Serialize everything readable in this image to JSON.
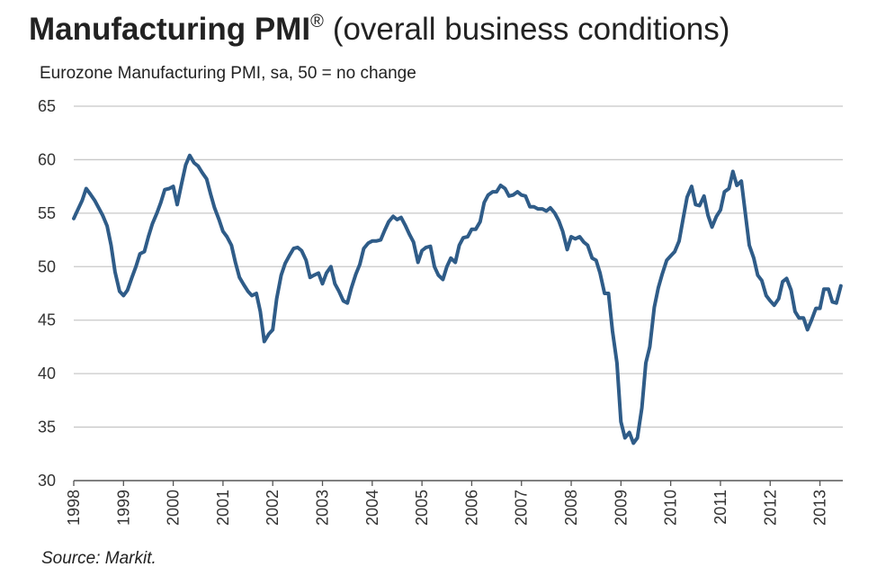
{
  "chart_data": {
    "type": "line",
    "title": "Manufacturing PMI",
    "title_mark": "®",
    "title_suffix": "(overall business conditions)",
    "subtitle": "Eurozone Manufacturing PMI, sa, 50 = no change",
    "source": "Source: Markit.",
    "color": "#2f5c88",
    "x": [
      1998.0,
      1998.08,
      1998.17,
      1998.25,
      1998.33,
      1998.42,
      1998.5,
      1998.58,
      1998.67,
      1998.75,
      1998.83,
      1998.92,
      1999.0,
      1999.08,
      1999.17,
      1999.25,
      1999.33,
      1999.42,
      1999.5,
      1999.58,
      1999.67,
      1999.75,
      1999.83,
      1999.92,
      2000.0,
      2000.08,
      2000.17,
      2000.25,
      2000.33,
      2000.42,
      2000.5,
      2000.58,
      2000.67,
      2000.75,
      2000.83,
      2000.92,
      2001.0,
      2001.08,
      2001.17,
      2001.25,
      2001.33,
      2001.42,
      2001.5,
      2001.58,
      2001.67,
      2001.75,
      2001.83,
      2001.92,
      2002.0,
      2002.08,
      2002.17,
      2002.25,
      2002.33,
      2002.42,
      2002.5,
      2002.58,
      2002.67,
      2002.75,
      2002.83,
      2002.92,
      2003.0,
      2003.08,
      2003.17,
      2003.25,
      2003.33,
      2003.42,
      2003.5,
      2003.58,
      2003.67,
      2003.75,
      2003.83,
      2003.92,
      2004.0,
      2004.08,
      2004.17,
      2004.25,
      2004.33,
      2004.42,
      2004.5,
      2004.58,
      2004.67,
      2004.75,
      2004.83,
      2004.92,
      2005.0,
      2005.08,
      2005.17,
      2005.25,
      2005.33,
      2005.42,
      2005.5,
      2005.58,
      2005.67,
      2005.75,
      2005.83,
      2005.92,
      2006.0,
      2006.08,
      2006.17,
      2006.25,
      2006.33,
      2006.42,
      2006.5,
      2006.58,
      2006.67,
      2006.75,
      2006.83,
      2006.92,
      2007.0,
      2007.08,
      2007.17,
      2007.25,
      2007.33,
      2007.42,
      2007.5,
      2007.58,
      2007.67,
      2007.75,
      2007.83,
      2007.92,
      2008.0,
      2008.08,
      2008.17,
      2008.25,
      2008.33,
      2008.42,
      2008.5,
      2008.58,
      2008.67,
      2008.75,
      2008.83,
      2008.92,
      2009.0,
      2009.08,
      2009.17,
      2009.25,
      2009.33,
      2009.42,
      2009.5,
      2009.58,
      2009.67,
      2009.75,
      2009.83,
      2009.92,
      2010.0,
      2010.08,
      2010.17,
      2010.25,
      2010.33,
      2010.42,
      2010.5,
      2010.58,
      2010.67,
      2010.75,
      2010.83,
      2010.92,
      2011.0,
      2011.08,
      2011.17,
      2011.25,
      2011.33,
      2011.42,
      2011.5,
      2011.58,
      2011.67,
      2011.75,
      2011.83,
      2011.92,
      2012.0,
      2012.08,
      2012.17,
      2012.25,
      2012.33,
      2012.42,
      2012.5,
      2012.58,
      2012.67,
      2012.75,
      2012.83,
      2012.92,
      2013.0,
      2013.08,
      2013.17,
      2013.25,
      2013.33,
      2013.42
    ],
    "values": [
      54.5,
      55.3,
      56.2,
      57.3,
      56.8,
      56.2,
      55.5,
      54.8,
      53.8,
      52.0,
      49.5,
      47.7,
      47.3,
      47.8,
      49.0,
      50.0,
      51.2,
      51.4,
      52.8,
      54.0,
      55.0,
      56.0,
      57.2,
      57.3,
      57.5,
      55.8,
      57.8,
      59.5,
      60.4,
      59.7,
      59.4,
      58.8,
      58.2,
      56.8,
      55.5,
      54.4,
      53.3,
      52.8,
      52.0,
      50.4,
      49.0,
      48.3,
      47.7,
      47.3,
      47.5,
      45.8,
      43.0,
      43.7,
      44.1,
      47.0,
      49.2,
      50.3,
      51.0,
      51.7,
      51.8,
      51.5,
      50.6,
      49.0,
      49.2,
      49.4,
      48.4,
      49.4,
      50.0,
      48.4,
      47.7,
      46.8,
      46.6,
      48.0,
      49.3,
      50.2,
      51.7,
      52.2,
      52.4,
      52.4,
      52.5,
      53.4,
      54.2,
      54.7,
      54.4,
      54.6,
      53.8,
      53.0,
      52.3,
      50.4,
      51.5,
      51.8,
      51.9,
      50.0,
      49.2,
      48.8,
      50.0,
      50.8,
      50.4,
      52.0,
      52.7,
      52.8,
      53.5,
      53.5,
      54.2,
      56.0,
      56.7,
      57.0,
      57.0,
      57.6,
      57.3,
      56.6,
      56.7,
      57.0,
      56.7,
      56.6,
      55.6,
      55.6,
      55.4,
      55.4,
      55.2,
      55.5,
      55.0,
      54.3,
      53.3,
      51.6,
      52.8,
      52.6,
      52.8,
      52.3,
      52.0,
      50.8,
      50.6,
      49.4,
      47.5,
      47.5,
      44.0,
      41.0,
      35.5,
      34.0,
      34.5,
      33.5,
      34.0,
      36.8,
      41.0,
      42.5,
      46.2,
      48.0,
      49.3,
      50.6,
      51.0,
      51.4,
      52.4,
      54.5,
      56.5,
      57.5,
      55.8,
      55.7,
      56.6,
      54.8,
      53.7,
      54.7,
      55.3,
      57.0,
      57.3,
      58.9,
      57.6,
      58.0,
      55.0,
      52.0,
      50.8,
      49.2,
      48.7,
      47.3,
      46.8,
      46.4,
      47.0,
      48.6,
      48.9,
      47.8,
      45.8,
      45.2,
      45.2,
      44.1,
      45.0,
      46.1,
      46.1,
      47.9,
      47.9,
      46.7,
      46.6,
      48.2
    ],
    "xlim": [
      1998,
      2013.46
    ],
    "xticks": [
      1998,
      1999,
      2000,
      2001,
      2002,
      2003,
      2004,
      2005,
      2006,
      2007,
      2008,
      2009,
      2010,
      2011,
      2012,
      2013
    ],
    "ylim": [
      30,
      65
    ],
    "yticks": [
      30,
      35,
      40,
      45,
      50,
      55,
      60,
      65
    ],
    "grid": true
  }
}
